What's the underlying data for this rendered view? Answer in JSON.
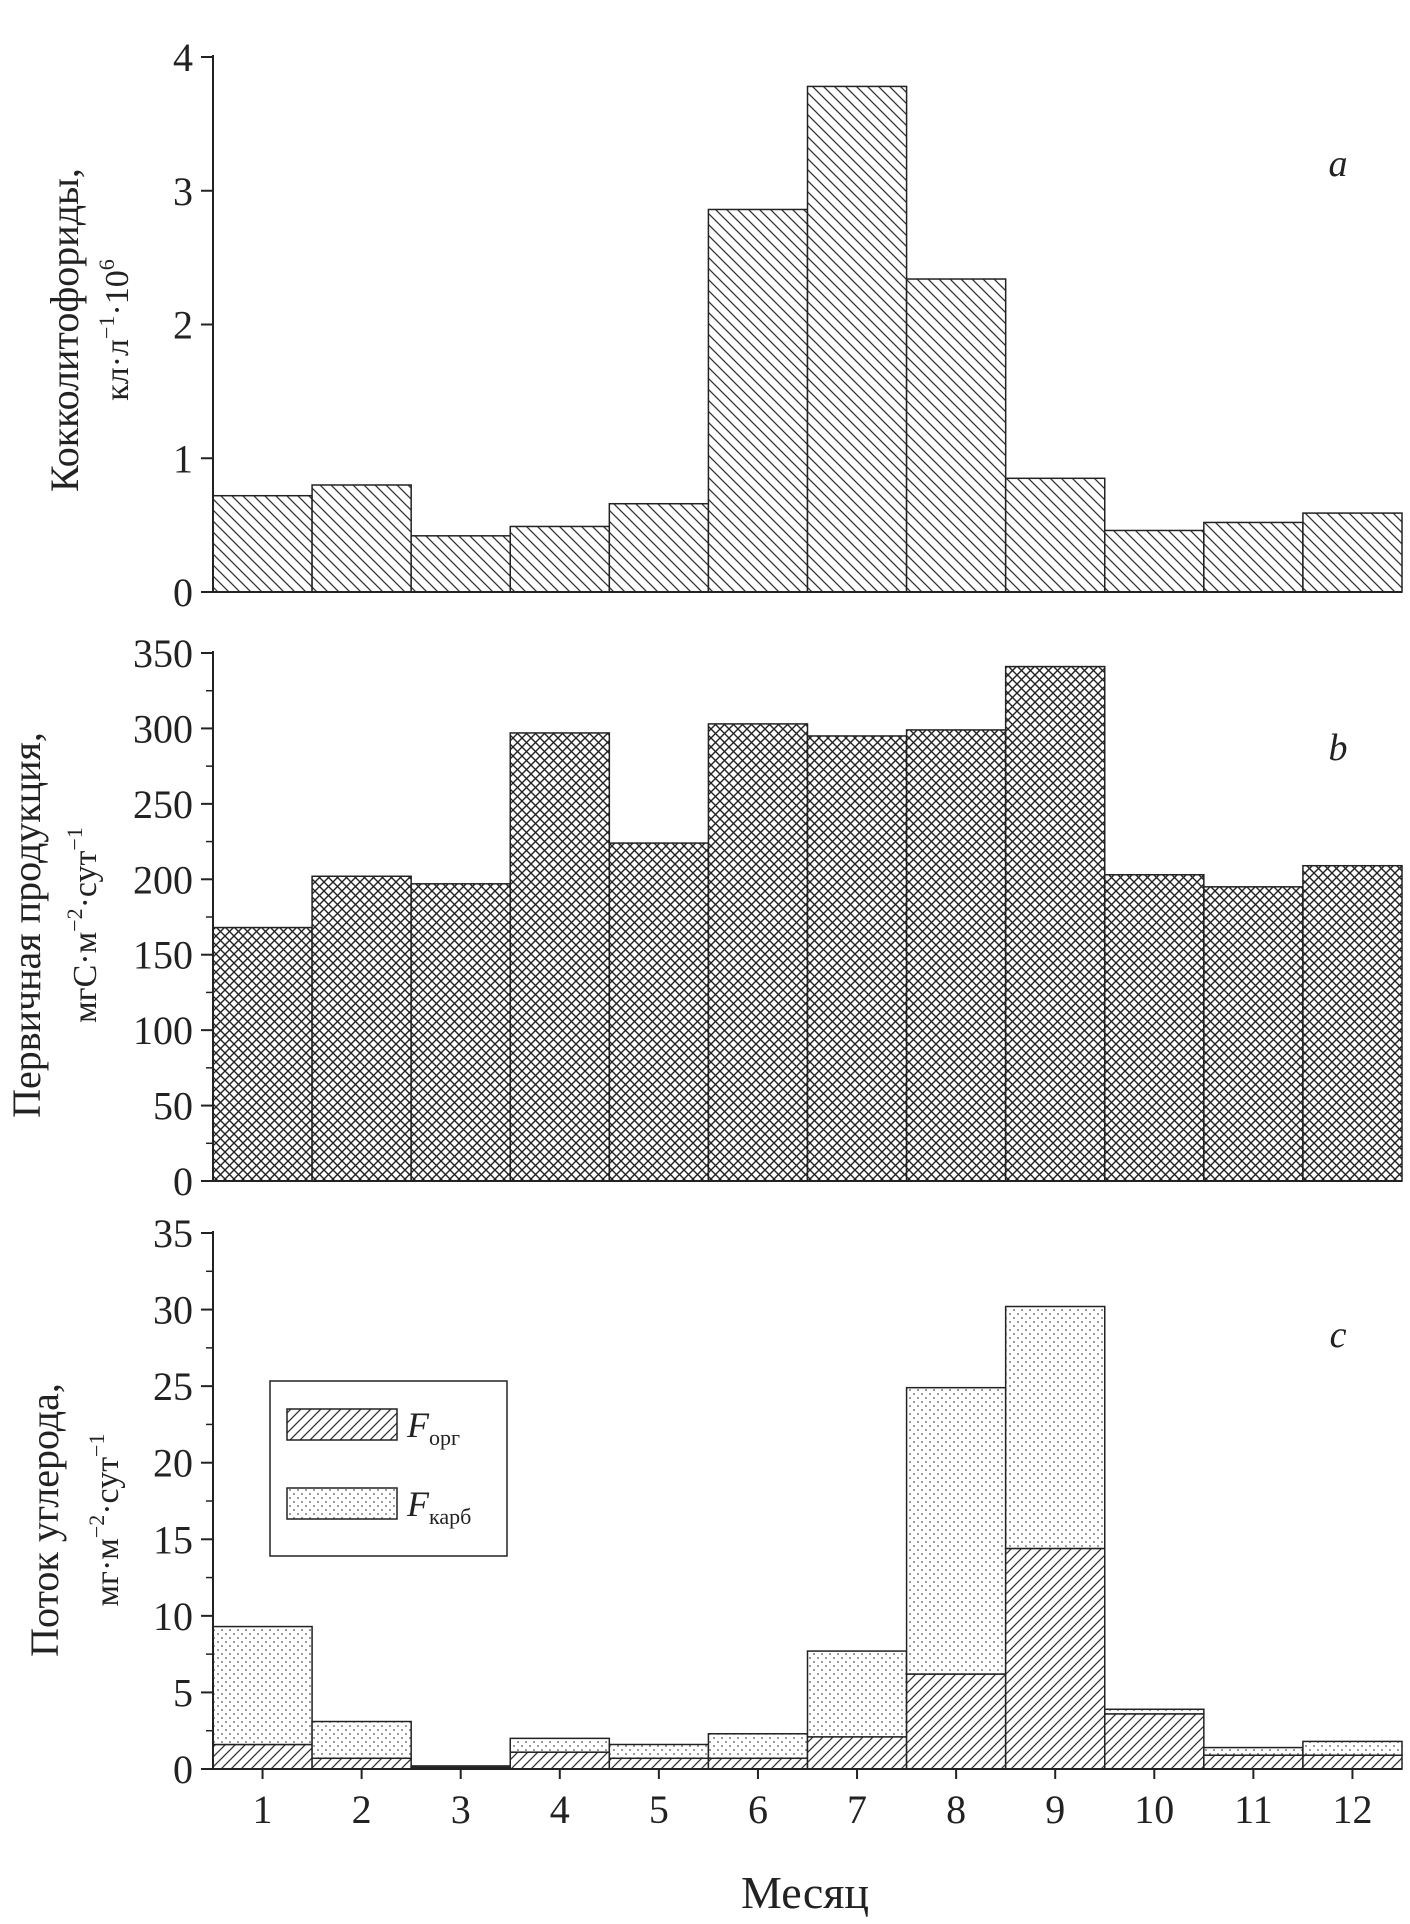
{
  "chart_data": [
    {
      "id": "a",
      "type": "bar",
      "panel_label": "a",
      "ylabel_line1": "Кокколитофориды,",
      "ylabel_line2": "кл·л",
      "ylabel_line2_sup": "−1",
      "ylabel_line2_tail": "·10",
      "ylabel_line2_tail_sup": "6",
      "ylim": [
        0,
        4
      ],
      "yticks": [
        0,
        1,
        2,
        3,
        4
      ],
      "minor_ticks": false,
      "pattern": "diag-back",
      "categories": [
        "1",
        "2",
        "3",
        "4",
        "5",
        "6",
        "7",
        "8",
        "9",
        "10",
        "11",
        "12"
      ],
      "values": [
        0.72,
        0.8,
        0.42,
        0.49,
        0.66,
        2.86,
        3.78,
        2.34,
        0.85,
        0.46,
        0.52,
        0.59
      ]
    },
    {
      "id": "b",
      "type": "bar",
      "panel_label": "b",
      "ylabel_line1": "Первичная продукция,",
      "ylabel_line2": "мгС·м",
      "ylabel_line2_sup": "−2",
      "ylabel_line2_tail": "·сут",
      "ylabel_line2_tail_sup": "−1",
      "ylim": [
        0,
        350
      ],
      "yticks": [
        0,
        50,
        100,
        150,
        200,
        250,
        300,
        350
      ],
      "minor_ticks": true,
      "pattern": "crosshatch",
      "categories": [
        "1",
        "2",
        "3",
        "4",
        "5",
        "6",
        "7",
        "8",
        "9",
        "10",
        "11",
        "12"
      ],
      "values": [
        168,
        202,
        197,
        297,
        224,
        303,
        295,
        299,
        341,
        203,
        195,
        209
      ]
    },
    {
      "id": "c",
      "type": "bar",
      "stacked": true,
      "panel_label": "c",
      "ylabel_line1": "Поток углерода,",
      "ylabel_line2": "мг·м",
      "ylabel_line2_sup": "−2",
      "ylabel_line2_tail": "·сут",
      "ylabel_line2_tail_sup": "−1",
      "xlabel": "Месяц",
      "ylim": [
        0,
        35
      ],
      "yticks": [
        0,
        5,
        10,
        15,
        20,
        25,
        30,
        35
      ],
      "minor_ticks": true,
      "categories": [
        "1",
        "2",
        "3",
        "4",
        "5",
        "6",
        "7",
        "8",
        "9",
        "10",
        "11",
        "12"
      ],
      "series": [
        {
          "name": "F",
          "name_sub": "орг",
          "pattern": "diag-fwd",
          "values": [
            1.6,
            0.7,
            0.1,
            1.1,
            0.7,
            0.7,
            2.1,
            6.2,
            14.4,
            3.6,
            0.9,
            0.9
          ]
        },
        {
          "name": "F",
          "name_sub": "карб",
          "pattern": "dots",
          "values": [
            7.7,
            2.4,
            0.1,
            0.9,
            0.9,
            1.6,
            5.6,
            18.7,
            15.8,
            0.3,
            0.5,
            0.9
          ]
        }
      ]
    }
  ]
}
